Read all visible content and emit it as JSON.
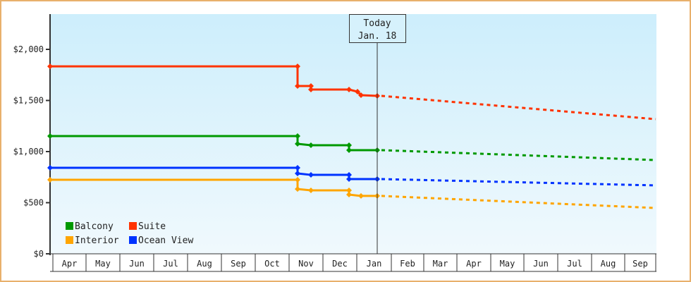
{
  "chart_data": {
    "type": "line",
    "title": "",
    "xlabel": "",
    "ylabel": "",
    "ylim": [
      0,
      2350
    ],
    "yticks": [
      {
        "value": 0,
        "label": "$0"
      },
      {
        "value": 500,
        "label": "$500"
      },
      {
        "value": 1000,
        "label": "$1,000"
      },
      {
        "value": 1500,
        "label": "$1,500"
      },
      {
        "value": 2000,
        "label": "$2,000"
      }
    ],
    "months": [
      "Apr",
      "May",
      "Jun",
      "Jul",
      "Aug",
      "Sep",
      "Oct",
      "Nov",
      "Dec",
      "Jan",
      "Feb",
      "Mar",
      "Apr",
      "May",
      "Jun",
      "Jul",
      "Aug",
      "Sep"
    ],
    "today_marker": {
      "line1": "Today",
      "line2": "Jan. 18"
    },
    "grid": false,
    "legend_position": "bottom-left inside",
    "legend": [
      {
        "name": "Balcony",
        "color": "#009900"
      },
      {
        "name": "Suite",
        "color": "#ff3300"
      },
      {
        "name": "Interior",
        "color": "#ffa500"
      },
      {
        "name": "Ocean View",
        "color": "#0033ff"
      }
    ],
    "series": [
      {
        "name": "Suite",
        "color": "#ff3300",
        "history": [
          {
            "date": "Apr",
            "value": 1834
          },
          {
            "date": "Nov (early)",
            "value": 1834
          },
          {
            "date": "Nov (early)",
            "value": 1641
          },
          {
            "date": "Nov",
            "value": 1641
          },
          {
            "date": "Nov",
            "value": 1607
          },
          {
            "date": "Dec",
            "value": 1607
          },
          {
            "date": "Dec",
            "value": 1586
          },
          {
            "date": "Dec (late)",
            "value": 1552
          },
          {
            "date": "Jan 18",
            "value": 1545
          }
        ],
        "projection": [
          {
            "date": "Jan 18",
            "value": 1545
          },
          {
            "date": "Sep",
            "value": 1317
          }
        ]
      },
      {
        "name": "Balcony",
        "color": "#009900",
        "history": [
          {
            "date": "Apr",
            "value": 1152
          },
          {
            "date": "Nov (early)",
            "value": 1152
          },
          {
            "date": "Nov (early)",
            "value": 1076
          },
          {
            "date": "Nov",
            "value": 1062
          },
          {
            "date": "Dec",
            "value": 1062
          },
          {
            "date": "Dec",
            "value": 1014
          },
          {
            "date": "Jan 18",
            "value": 1014
          }
        ],
        "projection": [
          {
            "date": "Jan 18",
            "value": 1014
          },
          {
            "date": "Sep",
            "value": 917
          }
        ]
      },
      {
        "name": "Ocean View",
        "color": "#0033ff",
        "history": [
          {
            "date": "Apr",
            "value": 841
          },
          {
            "date": "Nov (early)",
            "value": 841
          },
          {
            "date": "Nov (early)",
            "value": 786
          },
          {
            "date": "Nov",
            "value": 772
          },
          {
            "date": "Dec",
            "value": 772
          },
          {
            "date": "Dec",
            "value": 731
          },
          {
            "date": "Jan 18",
            "value": 731
          }
        ],
        "projection": [
          {
            "date": "Jan 18",
            "value": 731
          },
          {
            "date": "Sep",
            "value": 669
          }
        ]
      },
      {
        "name": "Interior",
        "color": "#ffa500",
        "history": [
          {
            "date": "Apr",
            "value": 724
          },
          {
            "date": "Nov (early)",
            "value": 724
          },
          {
            "date": "Nov (early)",
            "value": 634
          },
          {
            "date": "Nov",
            "value": 621
          },
          {
            "date": "Dec",
            "value": 621
          },
          {
            "date": "Dec",
            "value": 579
          },
          {
            "date": "Dec (late)",
            "value": 566
          },
          {
            "date": "Jan 18",
            "value": 566
          }
        ],
        "projection": [
          {
            "date": "Jan 18",
            "value": 566
          },
          {
            "date": "Sep",
            "value": 448
          }
        ]
      }
    ]
  }
}
